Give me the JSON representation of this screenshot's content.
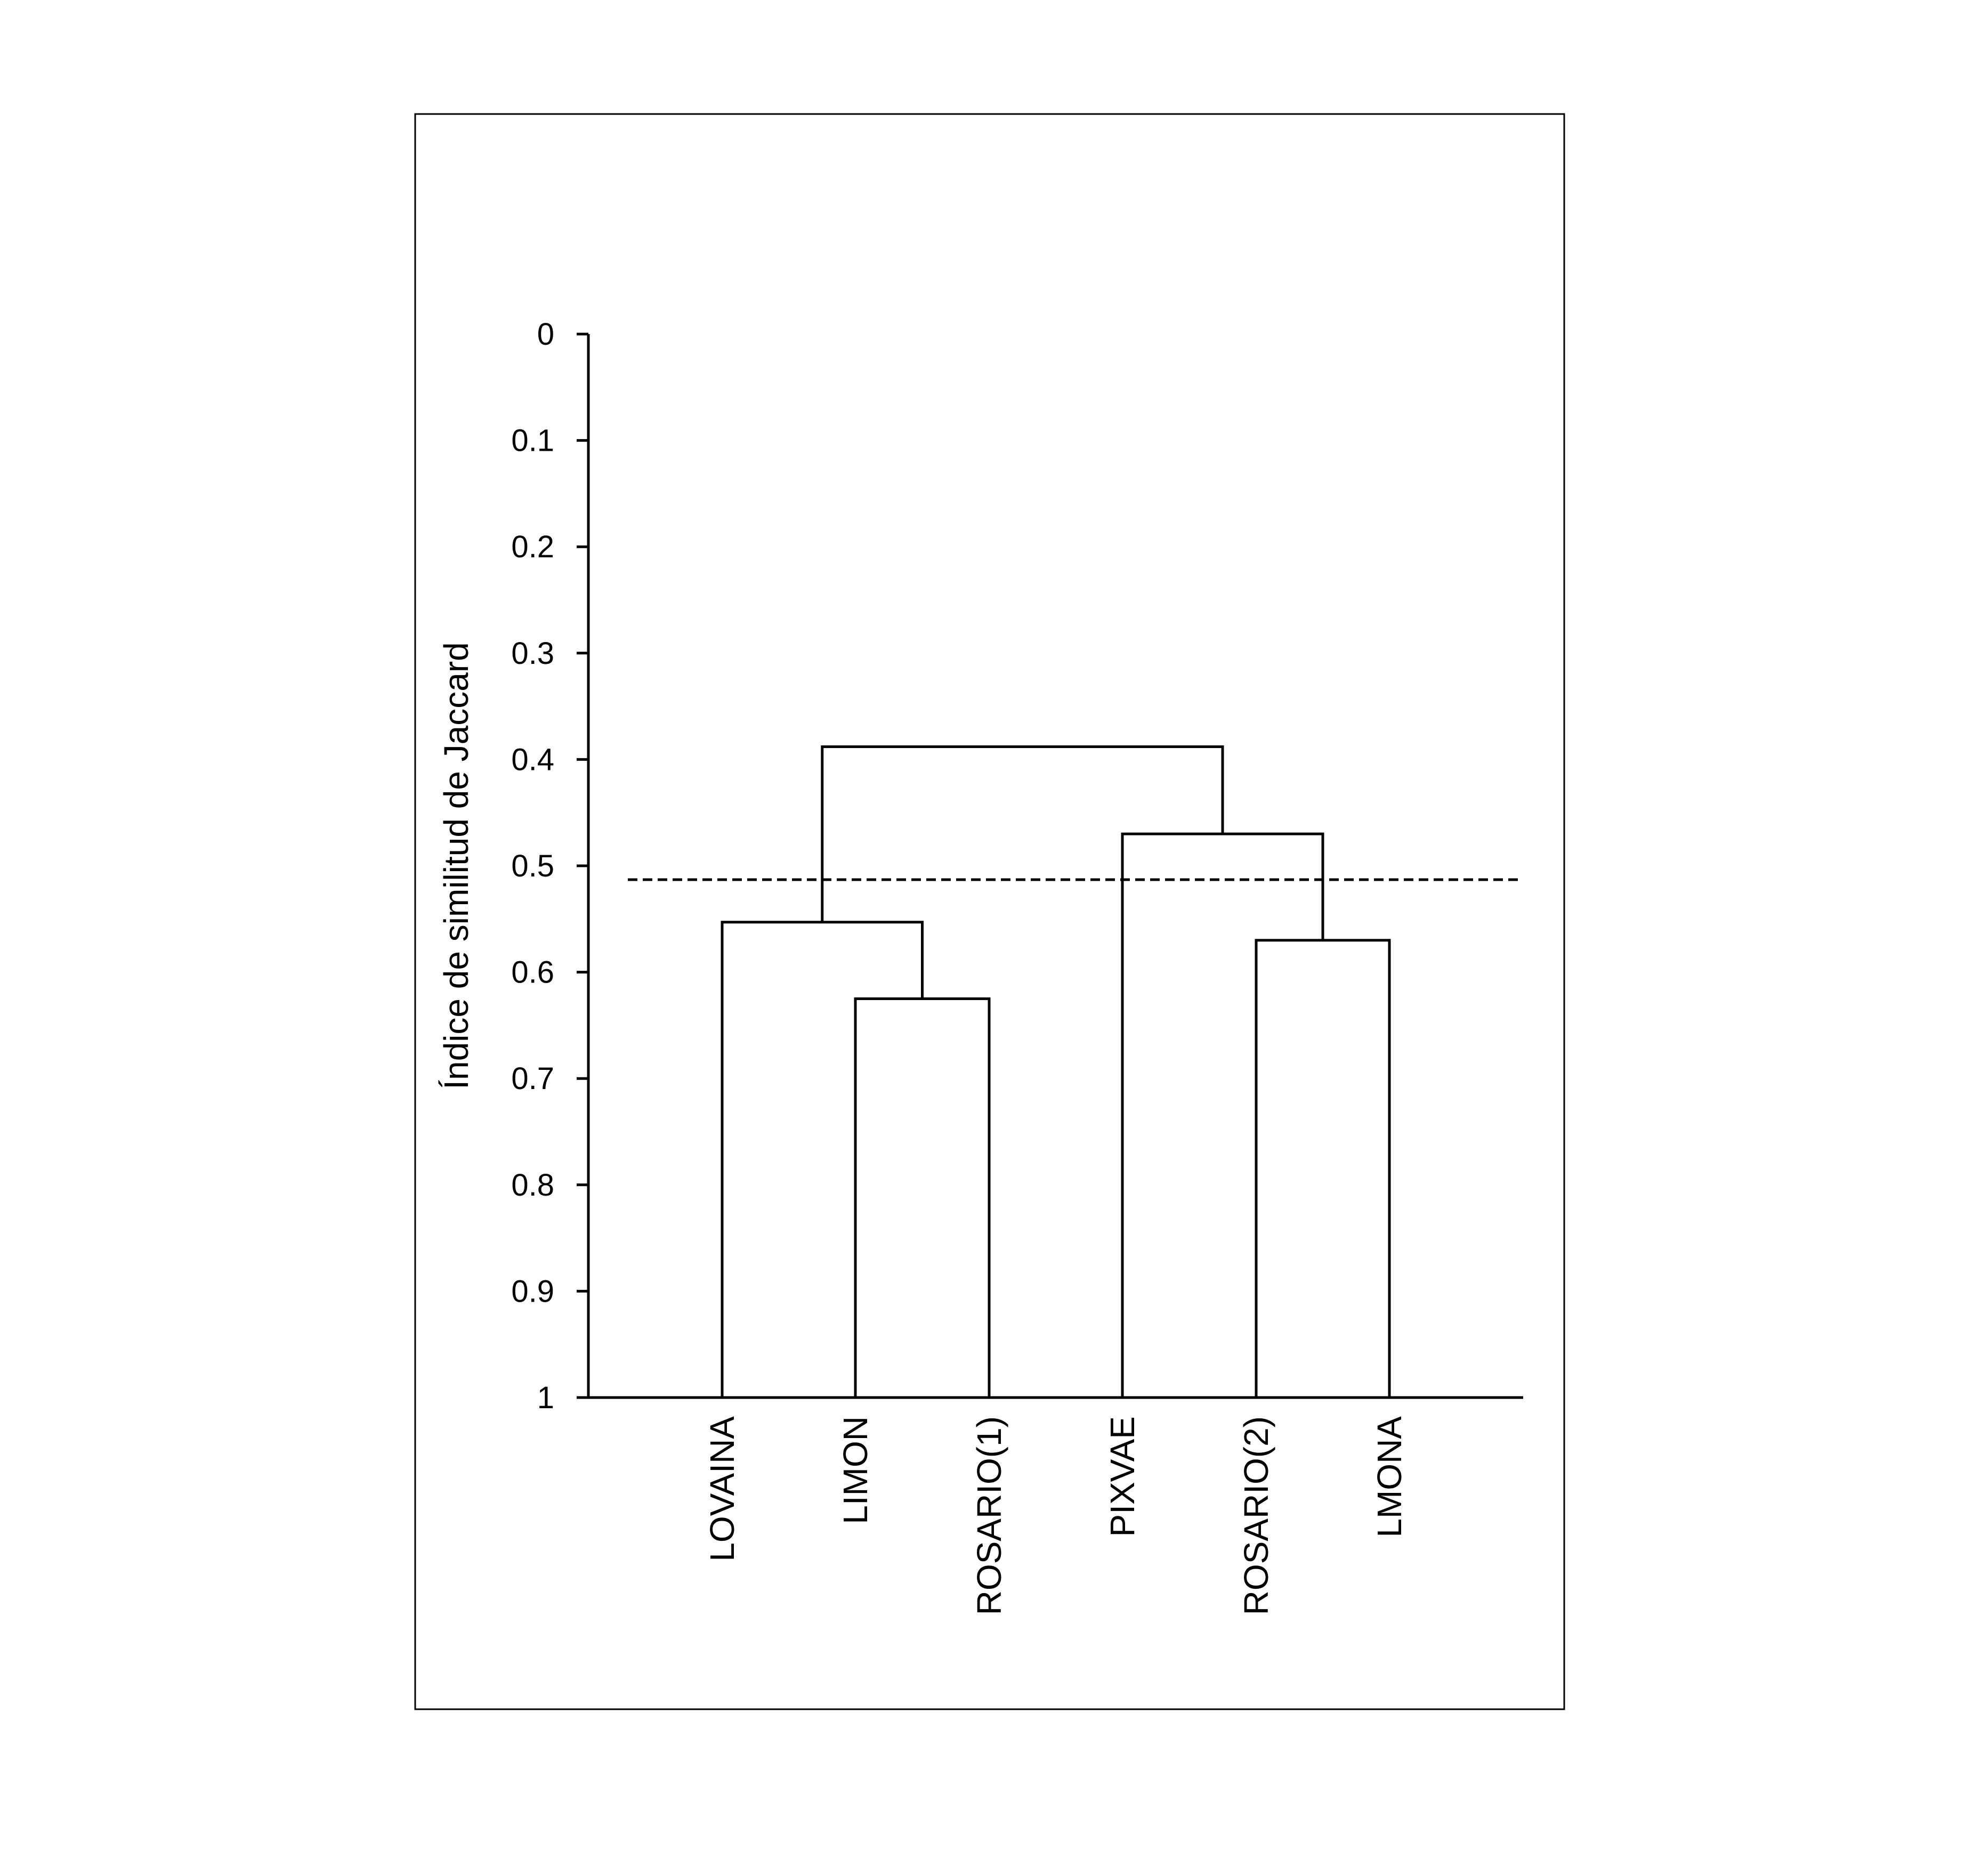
{
  "chart_data": {
    "type": "dendrogram",
    "ylabel": "Índice de similitud de Jaccard",
    "ylim": [
      0,
      1
    ],
    "y_inverted": true,
    "y_ticks": [
      "0",
      "0.1",
      "0.2",
      "0.3",
      "0.4",
      "0.5",
      "0.6",
      "0.7",
      "0.8",
      "0.9",
      "1"
    ],
    "leaves": [
      "LOVAINA",
      "LIMON",
      "ROSARIO(1)",
      "PIXVAE",
      "ROSARIO(2)",
      "LMONA"
    ],
    "merges": [
      {
        "children": [
          "LIMON",
          "ROSARIO(1)"
        ],
        "similarity": 0.625
      },
      {
        "children": [
          "ROSARIO(2)",
          "LMONA"
        ],
        "similarity": 0.57
      },
      {
        "children": [
          "LOVAINA",
          "LIMON+ROSARIO(1)"
        ],
        "similarity": 0.553
      },
      {
        "children": [
          "PIXVAE",
          "ROSARIO(2)+LMONA"
        ],
        "similarity": 0.47
      },
      {
        "children": [
          "LOVAINA+LIMON+ROSARIO(1)",
          "PIXVAE+ROSARIO(2)+LMONA"
        ],
        "similarity": 0.388
      }
    ],
    "cutoff": 0.513,
    "grid": false,
    "legend": "none"
  }
}
